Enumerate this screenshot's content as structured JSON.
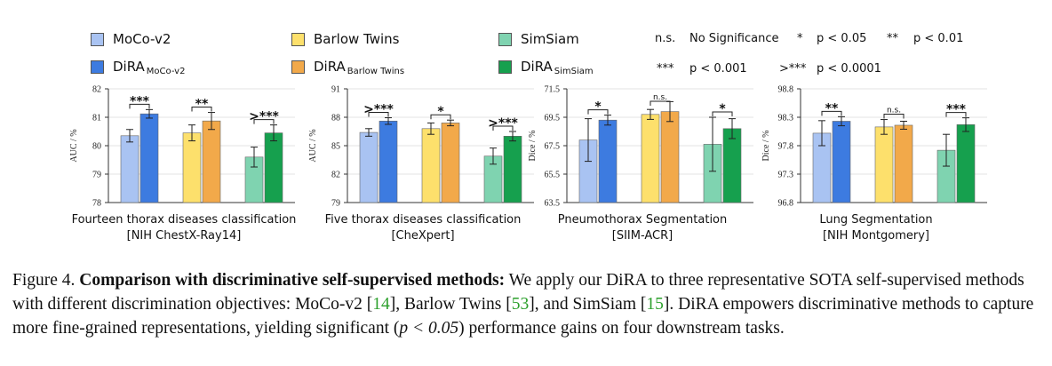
{
  "legend": {
    "items": [
      {
        "label": "MoCo-v2",
        "sub": "",
        "color": "#a9c3f2"
      },
      {
        "label": "Barlow Twins",
        "sub": "",
        "color": "#fde06c"
      },
      {
        "label": "SimSiam",
        "sub": "",
        "color": "#7fd3b0"
      },
      {
        "label": "DiRA",
        "sub": "MoCo-v2",
        "color": "#3d7be0"
      },
      {
        "label": "DiRA",
        "sub": "Barlow Twins",
        "color": "#f2a94a"
      },
      {
        "label": "DiRA",
        "sub": "SimSiam",
        "color": "#16a04e"
      }
    ],
    "significance": [
      {
        "symbol": "n.s.",
        "text": "No Significance"
      },
      {
        "symbol": "*",
        "text": "p < 0.05"
      },
      {
        "symbol": "**",
        "text": "p < 0.01"
      },
      {
        "symbol": "***",
        "text": "p < 0.001"
      },
      {
        "symbol": ">***",
        "text": "p < 0.0001"
      }
    ]
  },
  "chart_data": [
    {
      "type": "bar",
      "ylabel": "AUC / %",
      "ylim": [
        78,
        82
      ],
      "yticks": [
        "78",
        "79",
        "80",
        "81",
        "82"
      ],
      "caption": "Fourteen thorax diseases classification",
      "subcaption": "[NIH ChestX-Ray14]",
      "categories": [
        "MoCo-v2",
        "DiRA MoCo-v2",
        "Barlow Twins",
        "DiRA Barlow Twins",
        "SimSiam",
        "DiRA SimSiam"
      ],
      "values": [
        80.35,
        81.12,
        80.45,
        80.87,
        79.6,
        80.45
      ],
      "errors": [
        0.22,
        0.15,
        0.28,
        0.3,
        0.35,
        0.28
      ],
      "significance": [
        "***",
        "**",
        ">***"
      ]
    },
    {
      "type": "bar",
      "ylabel": "AUC / %",
      "ylim": [
        79,
        91
      ],
      "yticks": [
        "79",
        "82",
        "85",
        "88",
        "91"
      ],
      "caption": "Five thorax diseases classification",
      "subcaption": "[CheXpert]",
      "categories": [
        "MoCo-v2",
        "DiRA MoCo-v2",
        "Barlow Twins",
        "DiRA Barlow Twins",
        "SimSiam",
        "DiRA SimSiam"
      ],
      "values": [
        86.4,
        87.6,
        86.8,
        87.4,
        83.9,
        86.0
      ],
      "errors": [
        0.4,
        0.35,
        0.6,
        0.3,
        0.85,
        0.5
      ],
      "significance": [
        ">***",
        "*",
        ">***"
      ]
    },
    {
      "type": "bar",
      "ylabel": "Dice / %",
      "ylim": [
        63.5,
        71.5
      ],
      "yticks": [
        "63.5",
        "65.5",
        "67.5",
        "69.5",
        "71.5"
      ],
      "caption": "Pneumothorax Segmentation",
      "subcaption": "[SIIM-ACR]",
      "categories": [
        "MoCo-v2",
        "DiRA MoCo-v2",
        "Barlow Twins",
        "DiRA Barlow Twins",
        "SimSiam",
        "DiRA SimSiam"
      ],
      "values": [
        67.9,
        69.3,
        69.7,
        69.9,
        67.6,
        68.7
      ],
      "errors": [
        1.5,
        0.35,
        0.35,
        0.7,
        1.9,
        0.7
      ],
      "significance": [
        "*",
        "n.s.",
        "*"
      ]
    },
    {
      "type": "bar",
      "ylabel": "Dice / %",
      "ylim": [
        96.8,
        98.8
      ],
      "yticks": [
        "96.8",
        "97.3",
        "97.8",
        "98.3",
        "98.8"
      ],
      "caption": "Lung Segmentation",
      "subcaption": "[NIH Montgomery]",
      "categories": [
        "MoCo-v2",
        "DiRA MoCo-v2",
        "Barlow Twins",
        "DiRA Barlow Twins",
        "SimSiam",
        "DiRA SimSiam"
      ],
      "values": [
        98.02,
        98.23,
        98.13,
        98.16,
        97.72,
        98.17
      ],
      "errors": [
        0.22,
        0.08,
        0.13,
        0.07,
        0.28,
        0.12
      ],
      "significance": [
        "**",
        "n.s.",
        "***"
      ]
    }
  ],
  "caption": {
    "fig_label": "Figure 4.",
    "bold_title": "Comparison with discriminative self-supervised methods:",
    "text1": "We apply our DiRA to three representative SOTA self-supervised methods with different discrimination objectives: MoCo-v2 [",
    "ref1": "14",
    "text2": "], Barlow Twins [",
    "ref2": "53",
    "text3": "], and SimSiam [",
    "ref3": "15",
    "text4": "]. DiRA empowers discriminative methods to capture more fine-grained representations, yielding significant (",
    "math": "p < 0.05",
    "text5": ") performance gains on four downstream tasks."
  }
}
